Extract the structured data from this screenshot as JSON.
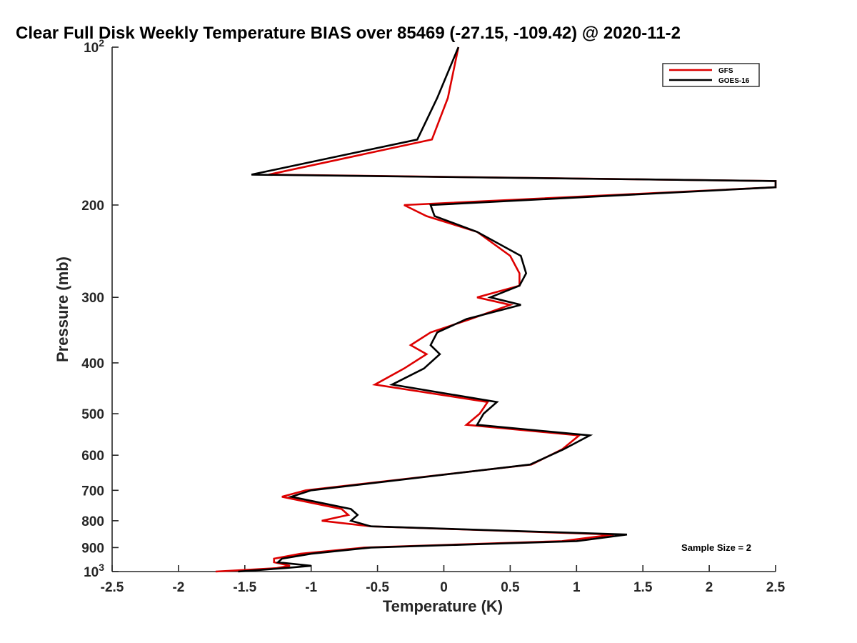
{
  "chart_data": {
    "type": "line",
    "title": "Clear Full Disk Weekly Temperature BIAS over 85469 (-27.15, -109.42) @ 2020-11-2",
    "xlabel": "Temperature (K)",
    "ylabel": "Pressure (mb)",
    "xlim": [
      -2.5,
      2.5
    ],
    "ylim": [
      100,
      1000
    ],
    "y_scale": "log",
    "y_reversed": true,
    "grid": false,
    "legend_position": "top-right",
    "x_ticks": [
      "-2.5",
      "-2",
      "-1.5",
      "-1",
      "-0.5",
      "0",
      "0.5",
      "1",
      "1.5",
      "2",
      "2.5"
    ],
    "y_ticks": [
      {
        "value": 100,
        "base": "10",
        "exp": "2"
      },
      {
        "value": 200,
        "label": "200"
      },
      {
        "value": 300,
        "label": "300"
      },
      {
        "value": 400,
        "label": "400"
      },
      {
        "value": 500,
        "label": "500"
      },
      {
        "value": 600,
        "label": "600"
      },
      {
        "value": 700,
        "label": "700"
      },
      {
        "value": 800,
        "label": "800"
      },
      {
        "value": 900,
        "label": "900"
      },
      {
        "value": 1000,
        "base": "10",
        "exp": "3"
      }
    ],
    "annotation": "Sample Size = 2",
    "series": [
      {
        "name": "GFS",
        "color": "#dd0000",
        "points": [
          [
            0.11,
            100
          ],
          [
            0.03,
            125
          ],
          [
            -0.09,
            150
          ],
          [
            -1.32,
            175
          ],
          [
            2.5,
            180
          ],
          [
            2.5,
            185
          ],
          [
            -0.3,
            200
          ],
          [
            -0.13,
            210
          ],
          [
            0.25,
            225
          ],
          [
            0.5,
            250
          ],
          [
            0.57,
            270
          ],
          [
            0.57,
            285
          ],
          [
            0.25,
            300
          ],
          [
            0.5,
            310
          ],
          [
            0.2,
            330
          ],
          [
            -0.1,
            350
          ],
          [
            -0.25,
            370
          ],
          [
            -0.13,
            385
          ],
          [
            -0.3,
            410
          ],
          [
            -0.52,
            440
          ],
          [
            0.33,
            475
          ],
          [
            0.27,
            500
          ],
          [
            0.17,
            525
          ],
          [
            1.02,
            550
          ],
          [
            0.89,
            585
          ],
          [
            0.66,
            625
          ],
          [
            -1.04,
            700
          ],
          [
            -1.22,
            720
          ],
          [
            -0.77,
            760
          ],
          [
            -0.72,
            780
          ],
          [
            -0.92,
            800
          ],
          [
            -0.55,
            820
          ],
          [
            1.28,
            850
          ],
          [
            0.89,
            875
          ],
          [
            -0.6,
            900
          ],
          [
            -1.08,
            925
          ],
          [
            -1.28,
            945
          ],
          [
            -1.28,
            960
          ],
          [
            -1.16,
            975
          ],
          [
            -1.26,
            985
          ],
          [
            -1.72,
            1000
          ]
        ]
      },
      {
        "name": "GOES-16",
        "color": "#000000",
        "points": [
          [
            0.11,
            100
          ],
          [
            -0.05,
            125
          ],
          [
            -0.2,
            150
          ],
          [
            -1.45,
            175
          ],
          [
            2.5,
            180
          ],
          [
            2.5,
            185
          ],
          [
            -0.1,
            200
          ],
          [
            -0.07,
            210
          ],
          [
            0.25,
            225
          ],
          [
            0.58,
            250
          ],
          [
            0.62,
            270
          ],
          [
            0.57,
            285
          ],
          [
            0.35,
            300
          ],
          [
            0.58,
            310
          ],
          [
            0.17,
            330
          ],
          [
            -0.05,
            350
          ],
          [
            -0.1,
            370
          ],
          [
            -0.03,
            385
          ],
          [
            -0.15,
            410
          ],
          [
            -0.39,
            440
          ],
          [
            0.4,
            475
          ],
          [
            0.3,
            500
          ],
          [
            0.25,
            525
          ],
          [
            1.1,
            550
          ],
          [
            0.9,
            585
          ],
          [
            0.65,
            625
          ],
          [
            -1.0,
            700
          ],
          [
            -1.15,
            720
          ],
          [
            -0.7,
            760
          ],
          [
            -0.65,
            780
          ],
          [
            -0.7,
            800
          ],
          [
            -0.55,
            820
          ],
          [
            1.38,
            850
          ],
          [
            1.0,
            875
          ],
          [
            -0.55,
            900
          ],
          [
            -1.0,
            925
          ],
          [
            -1.22,
            945
          ],
          [
            -1.25,
            960
          ],
          [
            -1.0,
            975
          ],
          [
            -1.2,
            985
          ],
          [
            -1.55,
            1000
          ]
        ]
      }
    ]
  }
}
